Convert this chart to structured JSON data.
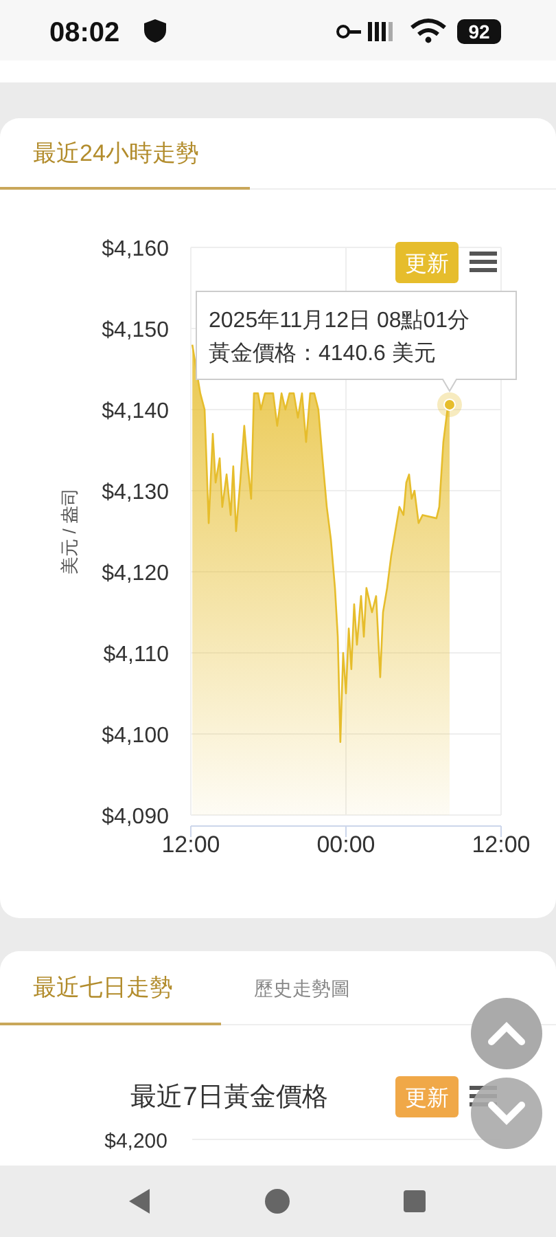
{
  "chart_data": [
    {
      "type": "area",
      "title": "最近24小時走勢",
      "ylabel": "美元 / 盎司",
      "annotations": [
        "08:02",
        "92",
        "更新",
        "2025年11月12日 08點01分",
        "黃金價格：4140.6 美元"
      ],
      "x": [
        "2025-11-11T12:07",
        "2025-11-11T12:25",
        "2025-11-11T12:44",
        "2025-11-11T13:04",
        "2025-11-11T13:23",
        "2025-11-11T13:42",
        "2025-11-11T13:55",
        "2025-11-11T14:14",
        "2025-11-11T14:26",
        "2025-11-11T14:46",
        "2025-11-11T15:05",
        "2025-11-11T15:17",
        "2025-11-11T15:30",
        "2025-11-11T15:49",
        "2025-11-11T16:08",
        "2025-11-11T16:21",
        "2025-11-11T16:40",
        "2025-11-11T16:53",
        "2025-11-11T17:12",
        "2025-11-11T17:25",
        "2025-11-11T17:44",
        "2025-11-11T18:03",
        "2025-11-11T18:22",
        "2025-11-11T18:41",
        "2025-11-11T19:01",
        "2025-11-11T19:19",
        "2025-11-11T19:38",
        "2025-11-11T19:58",
        "2025-11-11T20:17",
        "2025-11-11T20:36",
        "2025-11-11T20:55",
        "2025-11-11T21:14",
        "2025-11-11T21:33",
        "2025-11-11T21:52",
        "2025-11-11T22:11",
        "2025-11-11T22:31",
        "2025-11-11T22:50",
        "2025-11-11T23:09",
        "2025-11-11T23:22",
        "2025-11-11T23:34",
        "2025-11-11T23:47",
        "2025-11-12T00:00",
        "2025-11-12T00:13",
        "2025-11-12T00:25",
        "2025-11-12T00:38",
        "2025-11-12T00:51",
        "2025-11-12T01:10",
        "2025-11-12T01:23",
        "2025-11-12T01:35",
        "2025-11-12T02:01",
        "2025-11-12T02:20",
        "2025-11-12T02:39",
        "2025-11-12T02:52",
        "2025-11-12T03:11",
        "2025-11-12T03:30",
        "2025-11-12T03:49",
        "2025-11-12T04:08",
        "2025-11-12T04:27",
        "2025-11-12T04:40",
        "2025-11-12T04:53",
        "2025-11-12T05:05",
        "2025-11-12T05:18",
        "2025-11-12T05:37",
        "2025-11-12T05:56",
        "2025-11-12T07:00",
        "2025-11-12T07:13",
        "2025-11-12T07:32",
        "2025-11-12T07:51",
        "2025-11-12T08:01"
      ],
      "series": [
        {
          "color": "#e6bd2c",
          "values": [
            4148,
            4145,
            4142,
            4140,
            4126,
            4137,
            4131,
            4134,
            4128,
            4132,
            4127,
            4133,
            4125,
            4131,
            4138,
            4134,
            4129,
            4142,
            4142,
            4140,
            4142,
            4142,
            4142,
            4138,
            4142,
            4140,
            4142,
            4142,
            4139,
            4142,
            4136,
            4142,
            4142,
            4140,
            4134,
            4128,
            4124,
            4118,
            4112,
            4099,
            4110,
            4105,
            4113,
            4108,
            4116,
            4111,
            4117,
            4112,
            4118,
            4115,
            4117,
            4107,
            4115,
            4118,
            4122,
            4125,
            4128,
            4127,
            4131,
            4132,
            4129,
            4130,
            4126,
            4127,
            4126.6,
            4128,
            4136,
            4140,
            4140.6
          ]
        }
      ],
      "xlim": [
        "2025-11-11T12:00",
        "2025-11-12T12:00"
      ],
      "xticks": [
        {
          "value": "2025-11-11T12:00",
          "label": "12:00"
        },
        {
          "value": "2025-11-12T00:00",
          "label": "00:00"
        },
        {
          "value": "2025-11-12T12:00",
          "label": "12:00"
        }
      ],
      "ylim": [
        4090,
        4160
      ],
      "yticks": [
        {
          "value": 4090,
          "label": "$4,090"
        },
        {
          "value": 4100,
          "label": "$4,100"
        },
        {
          "value": 4110,
          "label": "$4,110"
        },
        {
          "value": 4120,
          "label": "$4,120"
        },
        {
          "value": 4130,
          "label": "$4,130"
        },
        {
          "value": 4140,
          "label": "$4,140"
        },
        {
          "value": 4150,
          "label": "$4,150"
        },
        {
          "value": 4160,
          "label": "$4,160"
        }
      ],
      "grid": true
    },
    {
      "type": "other",
      "title": "最近7日黃金價格",
      "annotations": [
        "最近七日走勢",
        "歷史走勢圖",
        "更新",
        "$4,200"
      ]
    }
  ]
}
